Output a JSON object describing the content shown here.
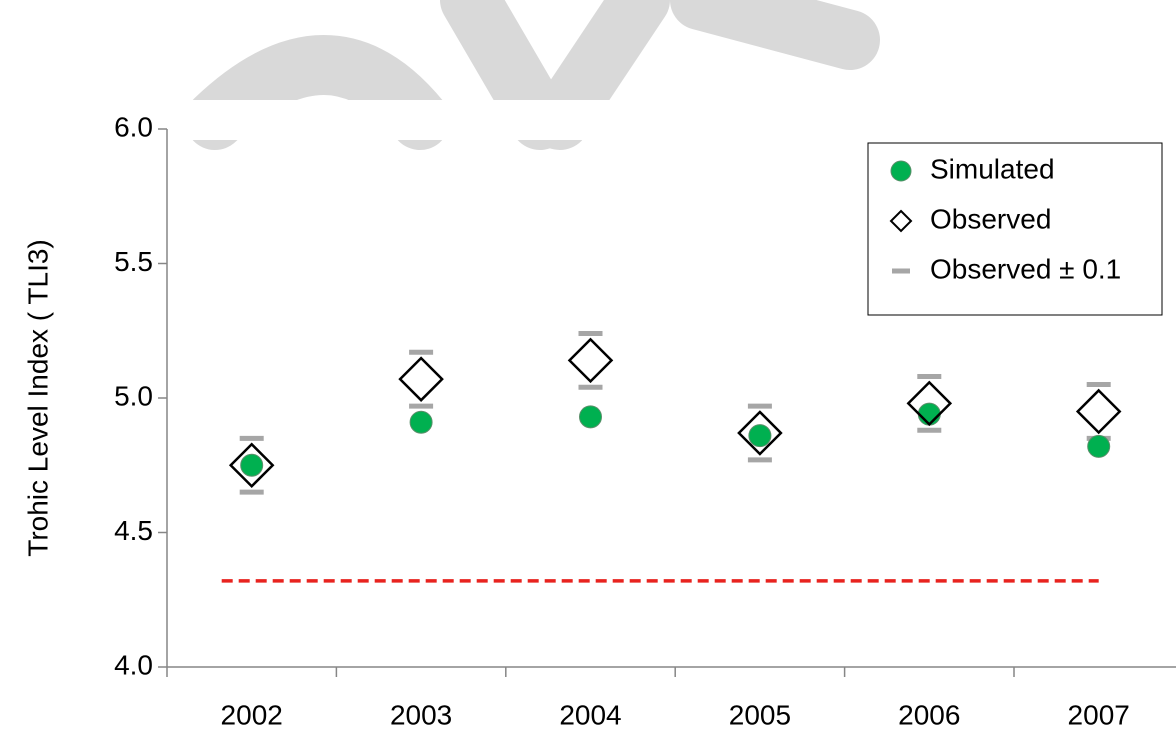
{
  "chart_data": {
    "type": "scatter",
    "y_label": "Trohic Level Index   ( TLI3)",
    "categories": [
      "2002",
      "2003",
      "2004",
      "2005",
      "2006",
      "2007"
    ],
    "series": [
      {
        "name": "Simulated",
        "marker": "circle",
        "color": "#00b050",
        "values": [
          4.75,
          4.91,
          4.93,
          4.86,
          4.94,
          4.82
        ]
      },
      {
        "name": "Observed",
        "marker": "diamond",
        "color": "#000000",
        "values": [
          4.75,
          5.07,
          5.14,
          4.87,
          4.98,
          4.95
        ],
        "error_bars": {
          "name": "Observed ± 0.1",
          "color": "#a6a6a6",
          "errors": [
            0.1,
            0.1,
            0.1,
            0.1,
            0.1,
            0.1
          ]
        }
      }
    ],
    "reference_line": {
      "value": 4.32,
      "color": "#e8231f"
    },
    "ylim": [
      4.0,
      6.0
    ],
    "yticks": [
      {
        "value": 4.0,
        "label": "4.0"
      },
      {
        "value": 4.5,
        "label": "4.5"
      },
      {
        "value": 5.0,
        "label": "5.0"
      },
      {
        "value": 5.5,
        "label": "5.5"
      },
      {
        "value": 6.0,
        "label": "6.0"
      }
    ],
    "legend": "top-right"
  }
}
